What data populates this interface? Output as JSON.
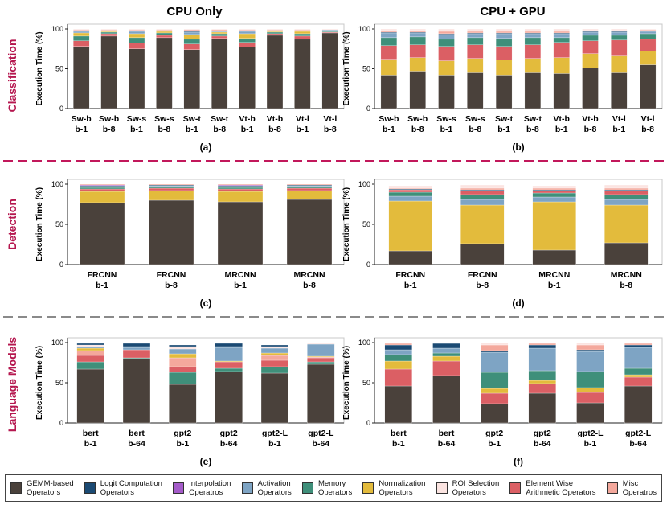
{
  "columns": [
    "CPU Only",
    "CPU + GPU"
  ],
  "rows": [
    "Classification",
    "Detection",
    "Language Models"
  ],
  "ylabel": "Execution Time (%)",
  "colors": {
    "row_label": "#b5174f",
    "divider_red": "#c2185b",
    "divider_gray": "#8a8a8a"
  },
  "legend": [
    {
      "key": "gemm",
      "label": "GEMM-based\nOperators",
      "color": "#4a413b"
    },
    {
      "key": "logit",
      "label": "Logit Computation\nOperators",
      "color": "#1b4a73"
    },
    {
      "key": "interp",
      "label": "Interpolation\nOperatros",
      "color": "#a45bc9"
    },
    {
      "key": "act",
      "label": "Activation\nOperators",
      "color": "#7ea4c4"
    },
    {
      "key": "mem",
      "label": "Memory\nOperators",
      "color": "#3f8f7a"
    },
    {
      "key": "norm",
      "label": "Normalization\nOperators",
      "color": "#e3bb3c"
    },
    {
      "key": "roi",
      "label": "ROI Selection\nOperators",
      "color": "#fbe4e1"
    },
    {
      "key": "elem",
      "label": "Element Wise\nArithmetic Operators",
      "color": "#db5f64"
    },
    {
      "key": "misc",
      "label": "Misc\nOperatros",
      "color": "#f4a89c"
    }
  ],
  "chart_data": [
    {
      "id": "a",
      "type": "bar",
      "stacked": true,
      "caption": "(a)",
      "ylim": [
        0,
        100
      ],
      "yticks": [
        0,
        50,
        100
      ],
      "categories": [
        [
          "Sw-b",
          "b-1"
        ],
        [
          "Sw-b",
          "b-8"
        ],
        [
          "Sw-s",
          "b-1"
        ],
        [
          "Sw-s",
          "b-8"
        ],
        [
          "Sw-t",
          "b-1"
        ],
        [
          "Sw-t",
          "b-8"
        ],
        [
          "Vt-b",
          "b-1"
        ],
        [
          "Vt-b",
          "b-8"
        ],
        [
          "Vt-l",
          "b-1"
        ],
        [
          "Vt-l",
          "b-8"
        ]
      ],
      "series": [
        {
          "key": "gemm",
          "values": [
            78,
            91,
            75,
            89,
            74,
            88,
            77,
            92,
            87,
            95
          ]
        },
        {
          "key": "elem",
          "values": [
            7,
            3,
            7,
            3,
            7,
            3,
            6,
            2,
            4,
            1
          ]
        },
        {
          "key": "mem",
          "values": [
            6,
            2,
            7,
            3,
            6,
            3,
            5,
            2,
            3,
            1
          ]
        },
        {
          "key": "norm",
          "values": [
            4,
            1,
            5,
            2,
            6,
            2,
            6,
            1,
            3,
            1
          ]
        },
        {
          "key": "act",
          "values": [
            2,
            1,
            3,
            1,
            3,
            1,
            3,
            1,
            1,
            1
          ]
        },
        {
          "key": "logit",
          "values": [
            1,
            0,
            1,
            0,
            1,
            0,
            1,
            0,
            0,
            0
          ]
        },
        {
          "key": "misc",
          "values": [
            1,
            1,
            1,
            1,
            2,
            2,
            1,
            1,
            1,
            0
          ]
        },
        {
          "key": "roi",
          "values": [
            1,
            1,
            1,
            1,
            1,
            1,
            1,
            1,
            1,
            1
          ]
        }
      ]
    },
    {
      "id": "b",
      "type": "bar",
      "stacked": true,
      "caption": "(b)",
      "ylim": [
        0,
        100
      ],
      "yticks": [
        0,
        50,
        100
      ],
      "categories": [
        [
          "Sw-b",
          "b-1"
        ],
        [
          "Sw-b",
          "b-8"
        ],
        [
          "Sw-s",
          "b-1"
        ],
        [
          "Sw-s",
          "b-8"
        ],
        [
          "Sw-t",
          "b-1"
        ],
        [
          "Sw-t",
          "b-8"
        ],
        [
          "Vt-b",
          "b-1"
        ],
        [
          "Vt-b",
          "b-8"
        ],
        [
          "Vt-l",
          "b-1"
        ],
        [
          "Vt-l",
          "b-8"
        ]
      ],
      "series": [
        {
          "key": "gemm",
          "values": [
            42,
            47,
            42,
            45,
            42,
            45,
            44,
            51,
            45,
            55
          ]
        },
        {
          "key": "norm",
          "values": [
            20,
            17,
            18,
            18,
            19,
            18,
            20,
            18,
            21,
            17
          ]
        },
        {
          "key": "elem",
          "values": [
            17,
            16,
            18,
            17,
            17,
            17,
            19,
            16,
            20,
            15
          ]
        },
        {
          "key": "mem",
          "values": [
            10,
            10,
            9,
            9,
            10,
            9,
            6,
            7,
            6,
            7
          ]
        },
        {
          "key": "act",
          "values": [
            6,
            5,
            6,
            5,
            6,
            5,
            5,
            4,
            4,
            3
          ]
        },
        {
          "key": "logit",
          "values": [
            1,
            1,
            1,
            1,
            1,
            1,
            1,
            1,
            1,
            1
          ]
        },
        {
          "key": "misc",
          "values": [
            2,
            2,
            3,
            2,
            2,
            2,
            2,
            1,
            1,
            1
          ]
        },
        {
          "key": "roi",
          "values": [
            2,
            2,
            3,
            3,
            3,
            3,
            3,
            2,
            2,
            1
          ]
        }
      ]
    },
    {
      "id": "c",
      "type": "bar",
      "stacked": true,
      "caption": "(c)",
      "ylim": [
        0,
        100
      ],
      "yticks": [
        0,
        50,
        100
      ],
      "categories": [
        [
          "FRCNN",
          "b-1"
        ],
        [
          "FRCNN",
          "b-8"
        ],
        [
          "MRCNN",
          "b-1"
        ],
        [
          "MRCNN",
          "b-8"
        ]
      ],
      "series": [
        {
          "key": "gemm",
          "values": [
            77,
            80,
            78,
            81
          ]
        },
        {
          "key": "norm",
          "values": [
            14,
            12,
            13,
            11
          ]
        },
        {
          "key": "elem",
          "values": [
            3,
            3,
            3,
            3
          ]
        },
        {
          "key": "mem",
          "values": [
            2,
            2,
            2,
            2
          ]
        },
        {
          "key": "act",
          "values": [
            1,
            1,
            1,
            1
          ]
        },
        {
          "key": "logit",
          "values": [
            1,
            1,
            1,
            1
          ]
        },
        {
          "key": "interp",
          "values": [
            1,
            0,
            1,
            0
          ]
        },
        {
          "key": "misc",
          "values": [
            1,
            1,
            1,
            1
          ]
        }
      ]
    },
    {
      "id": "d",
      "type": "bar",
      "stacked": true,
      "caption": "(d)",
      "ylim": [
        0,
        100
      ],
      "yticks": [
        0,
        50,
        100
      ],
      "categories": [
        [
          "FRCNN",
          "b-1"
        ],
        [
          "FRCNN",
          "b-8"
        ],
        [
          "MRCNN",
          "b-1"
        ],
        [
          "MRCNN",
          "b-8"
        ]
      ],
      "series": [
        {
          "key": "gemm",
          "values": [
            17,
            26,
            18,
            27
          ]
        },
        {
          "key": "norm",
          "values": [
            62,
            48,
            60,
            47
          ]
        },
        {
          "key": "act",
          "values": [
            6,
            7,
            6,
            7
          ]
        },
        {
          "key": "mem",
          "values": [
            5,
            6,
            5,
            6
          ]
        },
        {
          "key": "elem",
          "values": [
            3,
            5,
            3,
            5
          ]
        },
        {
          "key": "logit",
          "values": [
            1,
            1,
            1,
            1
          ]
        },
        {
          "key": "misc",
          "values": [
            1,
            2,
            2,
            2
          ]
        },
        {
          "key": "roi",
          "values": [
            3,
            4,
            3,
            4
          ]
        }
      ]
    },
    {
      "id": "e",
      "type": "bar",
      "stacked": true,
      "caption": "(e)",
      "ylim": [
        0,
        100
      ],
      "yticks": [
        0,
        50,
        100
      ],
      "categories": [
        [
          "bert",
          "b-1"
        ],
        [
          "bert",
          "b-64"
        ],
        [
          "gpt2",
          "b-1"
        ],
        [
          "gpt2",
          "b-64"
        ],
        [
          "gpt2-L",
          "b-1"
        ],
        [
          "gpt2-L",
          "b-64"
        ]
      ],
      "series": [
        {
          "key": "gemm",
          "values": [
            67,
            80,
            48,
            64,
            62,
            73
          ]
        },
        {
          "key": "mem",
          "values": [
            9,
            1,
            15,
            4,
            8,
            3
          ]
        },
        {
          "key": "elem",
          "values": [
            8,
            10,
            7,
            8,
            8,
            5
          ]
        },
        {
          "key": "misc",
          "values": [
            6,
            0,
            11,
            0,
            6,
            1
          ]
        },
        {
          "key": "norm",
          "values": [
            3,
            0,
            5,
            1,
            3,
            1
          ]
        },
        {
          "key": "act",
          "values": [
            2,
            3,
            6,
            17,
            6,
            15
          ]
        },
        {
          "key": "roi",
          "values": [
            2,
            1,
            3,
            1,
            2,
            1
          ]
        },
        {
          "key": "logit",
          "values": [
            2,
            4,
            2,
            4,
            2,
            0
          ]
        }
      ]
    },
    {
      "id": "f",
      "type": "bar",
      "stacked": true,
      "caption": "(f)",
      "ylim": [
        0,
        100
      ],
      "yticks": [
        0,
        50,
        100
      ],
      "categories": [
        [
          "bert",
          "b-1"
        ],
        [
          "bert",
          "b-64"
        ],
        [
          "gpt2",
          "b-1"
        ],
        [
          "gpt2",
          "b-64"
        ],
        [
          "gpt2-L",
          "b-1"
        ],
        [
          "gpt2-L",
          "b-64"
        ]
      ],
      "series": [
        {
          "key": "gemm",
          "values": [
            46,
            59,
            24,
            37,
            25,
            46
          ]
        },
        {
          "key": "elem",
          "values": [
            21,
            18,
            13,
            12,
            13,
            11
          ]
        },
        {
          "key": "norm",
          "values": [
            10,
            6,
            6,
            4,
            6,
            3
          ]
        },
        {
          "key": "mem",
          "values": [
            8,
            4,
            20,
            12,
            20,
            8
          ]
        },
        {
          "key": "act",
          "values": [
            6,
            6,
            25,
            28,
            25,
            26
          ]
        },
        {
          "key": "logit",
          "values": [
            6,
            6,
            2,
            4,
            2,
            3
          ]
        },
        {
          "key": "misc",
          "values": [
            2,
            1,
            7,
            2,
            6,
            2
          ]
        },
        {
          "key": "roi",
          "values": [
            1,
            0,
            3,
            1,
            3,
            1
          ]
        }
      ]
    }
  ]
}
